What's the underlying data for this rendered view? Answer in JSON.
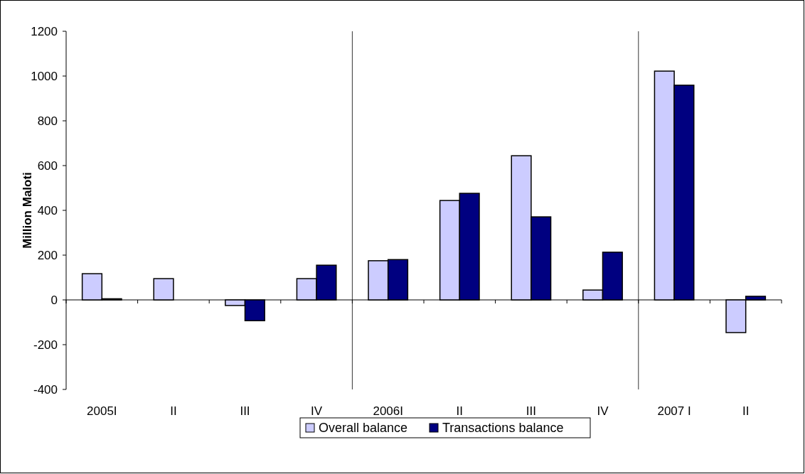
{
  "chart_data": {
    "type": "bar",
    "ylabel": "Million Maloti",
    "categories": [
      "2005I",
      "II",
      "III",
      "IV",
      "2006I",
      "II",
      "III",
      "IV",
      "2007 I",
      "II"
    ],
    "series": [
      {
        "name": "Overall balance",
        "color": "#ccccff",
        "values": [
          117,
          95,
          -25,
          95,
          175,
          444,
          644,
          44,
          1022,
          -146
        ]
      },
      {
        "name": "Transactions balance",
        "color": "#000080",
        "values": [
          5,
          null,
          -93,
          155,
          180,
          476,
          371,
          213,
          959,
          16
        ]
      }
    ],
    "ylim": [
      -400,
      1200
    ],
    "yticks": [
      -400,
      -200,
      0,
      200,
      400,
      600,
      800,
      1000,
      1200
    ],
    "legend": "bottom"
  }
}
